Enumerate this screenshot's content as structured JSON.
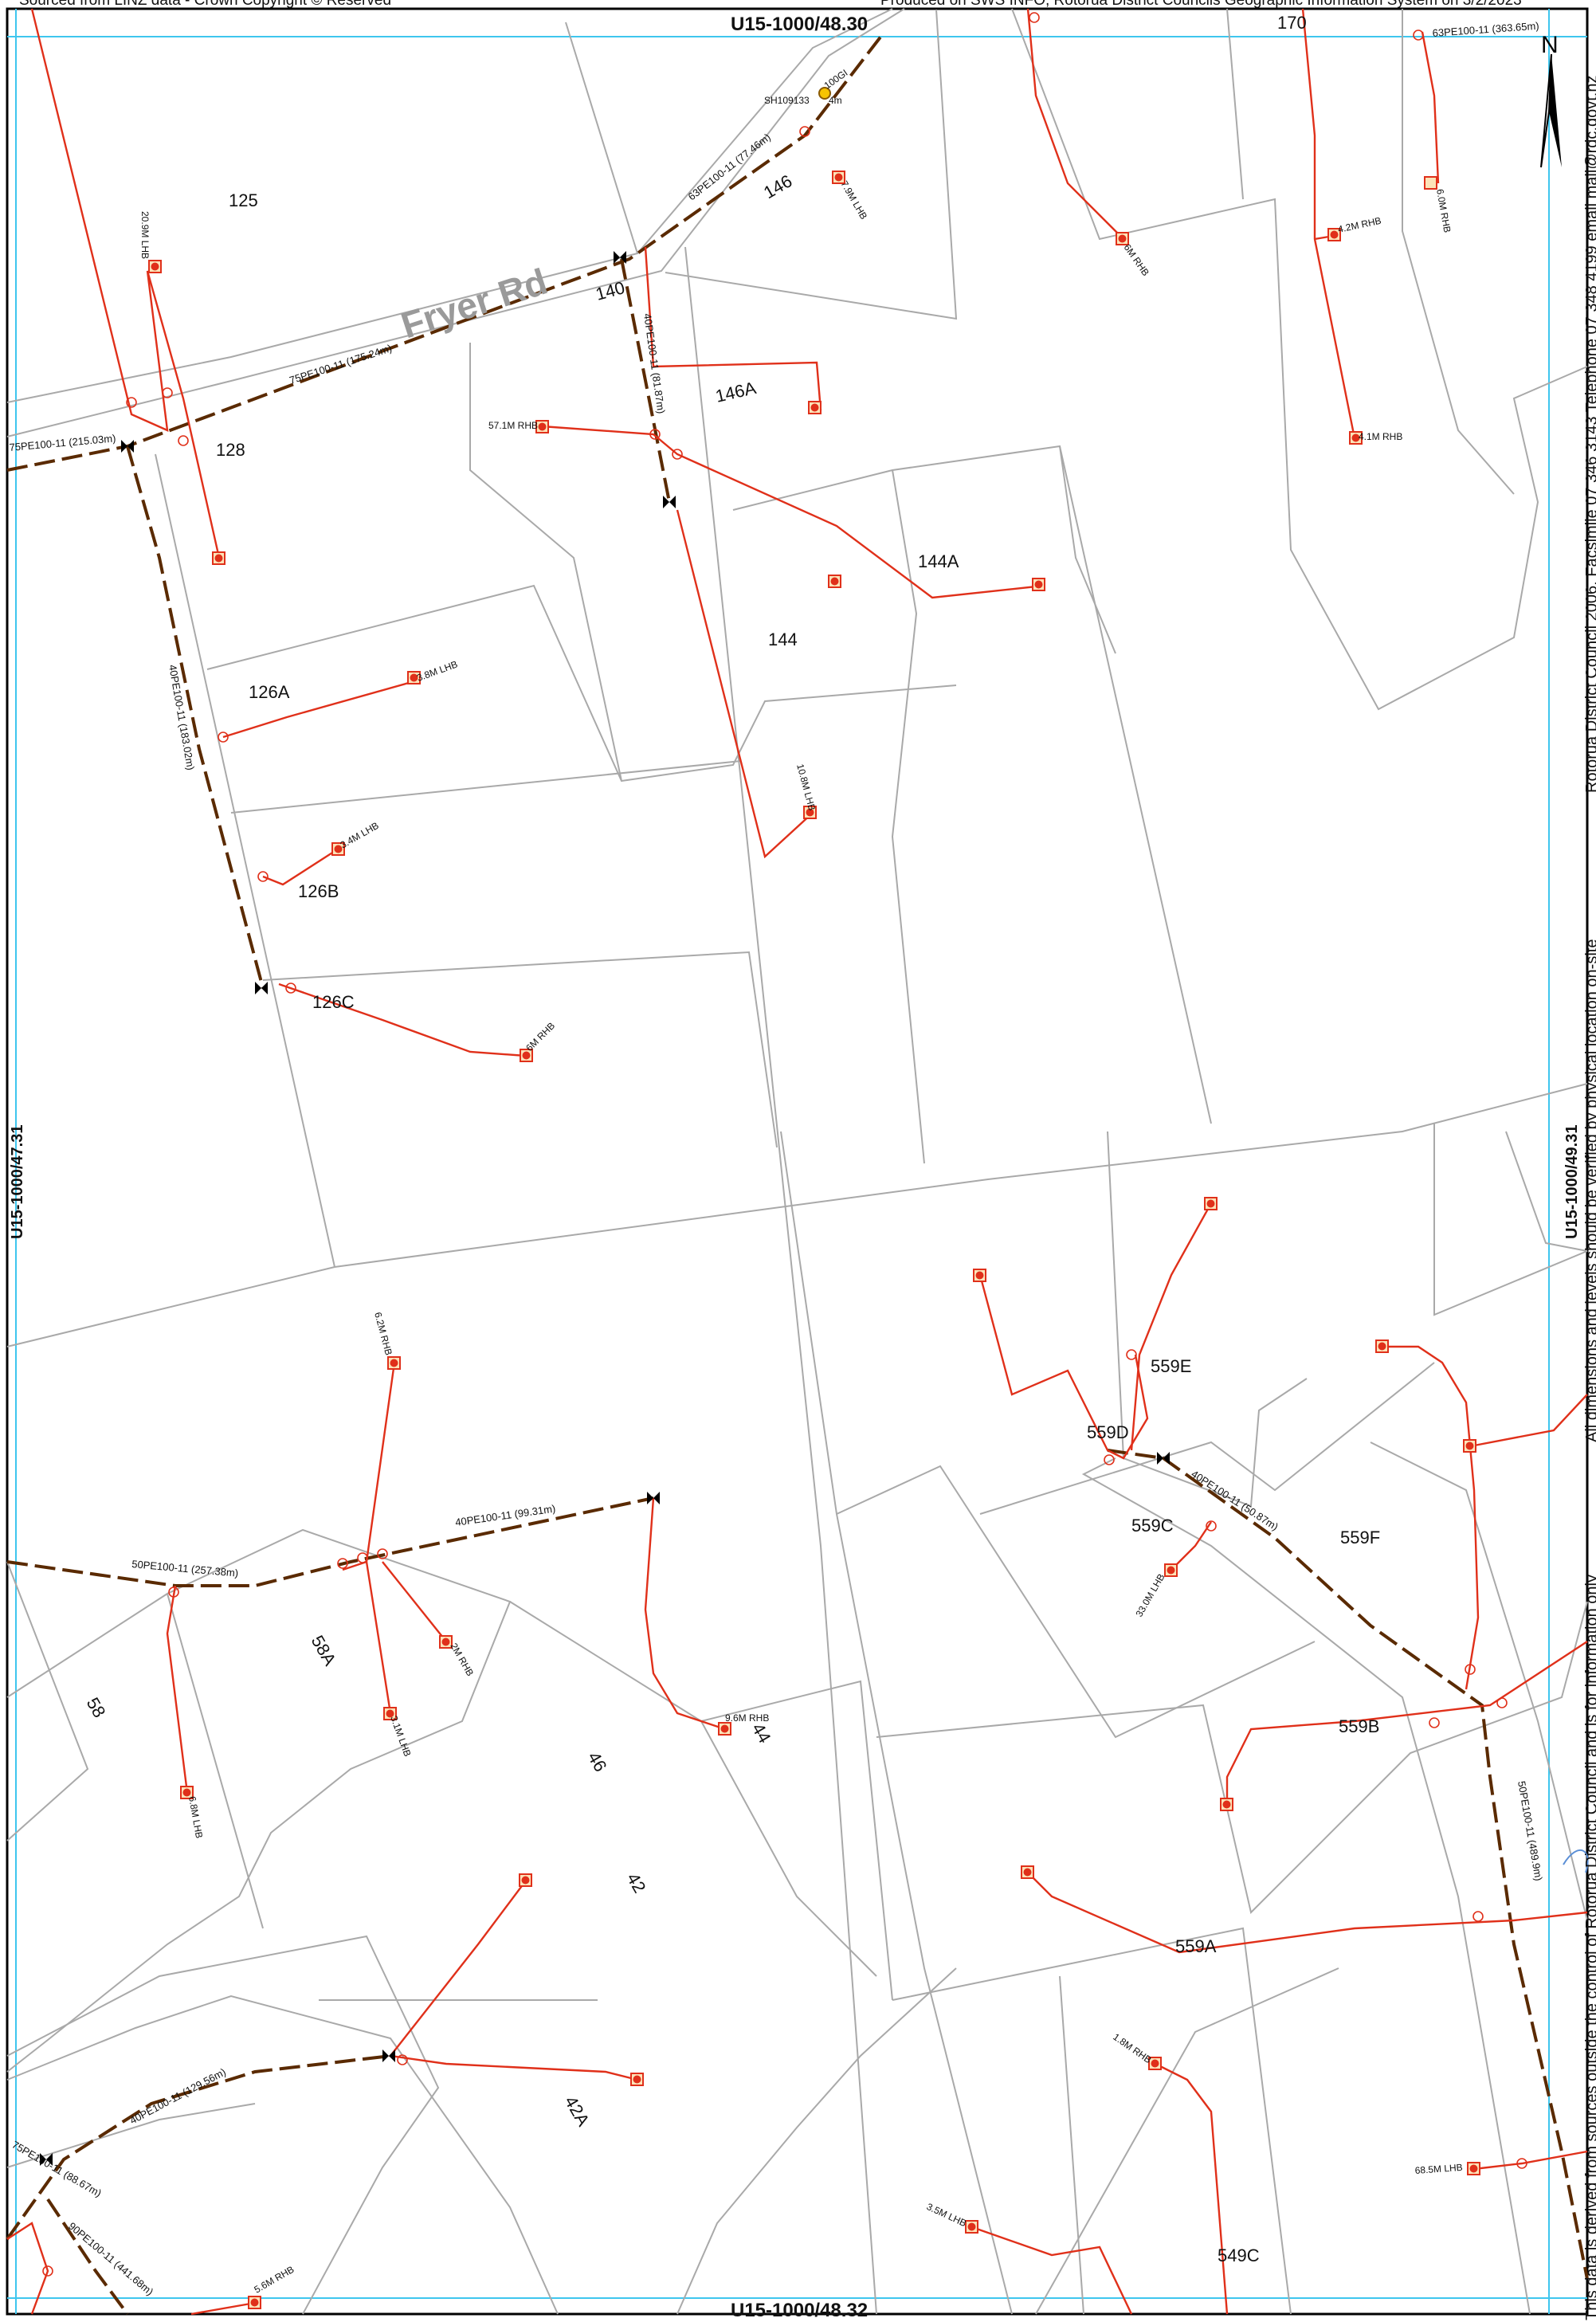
{
  "header": {
    "left": "Sourced from LINZ data - Crown Copyright © Reserved",
    "right": "Produced on SWS INFO, Rotorua District Councils Geographic Information System on 3/2/2023"
  },
  "sheet_refs": {
    "top": "U15-1000/48.30",
    "bottom": "U15-1000/48.32",
    "left": "U15-1000/47.31",
    "right": "U15-1000/49.31"
  },
  "disclaimer": {
    "line_a": "Rotorua District Council 2006. Facsimile 07 346 3143 Telephone 07 348 4199 email mail@rdc.govt.nz",
    "line_b": "All dimensions and levels should be verified by physical location on-site",
    "line_c": "This data is derived from sources outside the control of Rotorua District Council and is for information only"
  },
  "north_arrow": "N",
  "road_name": "Fryer Rd",
  "parcels": [
    "125",
    "128",
    "126A",
    "126B",
    "126C",
    "140",
    "146",
    "146A",
    "144",
    "144A",
    "170",
    "58",
    "58A",
    "46",
    "44",
    "42",
    "42A",
    "559D",
    "559E",
    "559C",
    "559F",
    "559B",
    "559A",
    "549C"
  ],
  "pipes": [
    "75PE100-11 (215.03m)",
    "75PE100-11 (175.24m)",
    "63PE100-11 (77.46m)",
    "63PE100-11 (363.65m)",
    "40PE100-11 (81.87m)",
    "40PE100-11 (183.02m)",
    "40PE100-11 (99.31m)",
    "50PE100-11 (257.38m)",
    "40PE100-11 (50.87m)",
    "50PE100-11 (489.9m)",
    "40PE100-11 (129.56m)",
    "75PE100-11 (88.67m)",
    "90PE100-11 (441.68m)"
  ],
  "lateral_labels": [
    "20.9M LHB",
    "57.1M RHB",
    "7.9M LHB",
    "6M RHB",
    "4.2M RHB",
    "4.1M RHB",
    "6.0M RHB",
    "3.8M LHB",
    "10.8M LHB",
    "3.4M LHB",
    "6M RHB",
    "6.2M RHB",
    "3.1M LHB",
    "2M RHB",
    "6.8M LHB",
    "9.6M RHB",
    "33.0M LHB",
    "1.8M RHB",
    "68.5M LHB",
    "3.5M LHB",
    "5.6M RHB"
  ],
  "hydrant": {
    "line1": "100GI",
    "line2": "SH109133",
    "line3": "4m"
  },
  "colors": {
    "pipe": "#5a2a00",
    "lateral": "#e0301a",
    "parcel": "#a9a9a9",
    "grid": "#3fc6ee",
    "road_label": "#9a9a9a",
    "meter_fill": "#fce3b8"
  }
}
